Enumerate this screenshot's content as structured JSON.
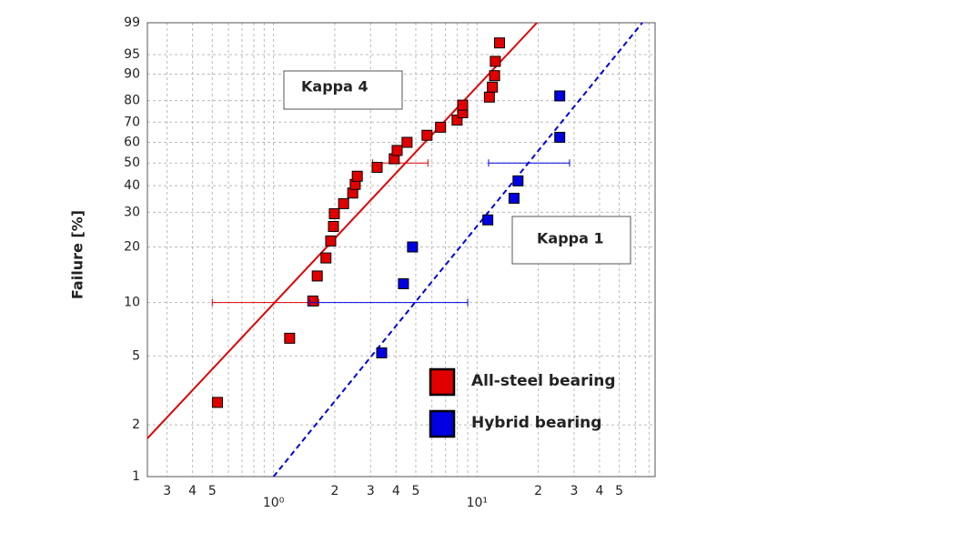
{
  "chart_data": {
    "type": "weibull",
    "y_label": "Failure [%]",
    "xscale": "log",
    "yscale": "weibull",
    "xlim": [
      0.24,
      75
    ],
    "ylim": [
      1,
      99
    ],
    "xticks": [
      {
        "value": 0.3,
        "label": "3"
      },
      {
        "value": 0.4,
        "label": "4"
      },
      {
        "value": 0.5,
        "label": "5"
      },
      {
        "value": 1,
        "label": "10⁰"
      },
      {
        "value": 2,
        "label": "2"
      },
      {
        "value": 3,
        "label": "3"
      },
      {
        "value": 4,
        "label": "4"
      },
      {
        "value": 5,
        "label": "5"
      },
      {
        "value": 10,
        "label": "10¹"
      },
      {
        "value": 20,
        "label": "2"
      },
      {
        "value": 30,
        "label": "3"
      },
      {
        "value": 40,
        "label": "4"
      },
      {
        "value": 50,
        "label": "5"
      }
    ],
    "xminor": [
      0.6,
      0.7,
      0.8,
      0.9,
      6,
      7,
      8,
      9,
      60,
      70
    ],
    "yticks": [
      1,
      2,
      5,
      10,
      20,
      30,
      40,
      50,
      60,
      70,
      80,
      90,
      95,
      99
    ],
    "grid": true,
    "legend": "lower right",
    "annotations": [
      "Kappa 4",
      "Kappa 1"
    ],
    "series": [
      {
        "name": "All-steel bearing",
        "color": "#e00000",
        "line_style": "solid",
        "x": [
          0.53,
          1.2,
          1.56,
          1.64,
          1.81,
          1.91,
          1.97,
          1.99,
          2.21,
          2.45,
          2.52,
          2.58,
          3.23,
          3.92,
          4.05,
          4.53,
          5.68,
          6.62,
          7.98,
          8.5,
          8.5,
          11.5,
          11.9,
          12.2,
          12.3,
          12.9
        ],
        "values": [
          2.7,
          6.3,
          10.2,
          14,
          17.5,
          21.5,
          25.5,
          29.5,
          33,
          37,
          40.5,
          44,
          48,
          52,
          56,
          60,
          63.5,
          67.5,
          71,
          74.5,
          78,
          81.5,
          85.5,
          89.5,
          93.5,
          97
        ],
        "fit": {
          "x": [
            0.24,
            19.7
          ],
          "y": [
            1.67,
            99
          ]
        },
        "intervals": [
          {
            "y": 10,
            "x": [
              0.5,
              1.67
            ]
          },
          {
            "y": 50,
            "x": [
              3.07,
              5.74
            ]
          }
        ]
      },
      {
        "name": "Hybrid bearing",
        "color": "#0000e0",
        "line_style": "dashed",
        "x": [
          3.4,
          4.35,
          4.82,
          11.3,
          15.2,
          15.9,
          25.5,
          25.5
        ],
        "values": [
          5.2,
          12.7,
          20,
          27.5,
          35,
          42,
          62.5,
          82
        ],
        "fit": {
          "x": [
            1,
            64.9
          ],
          "y": [
            1,
            99
          ]
        },
        "intervals": [
          {
            "y": 10,
            "x": [
              1.51,
              9.0
            ]
          },
          {
            "y": 50,
            "x": [
              11.4,
              28.5
            ]
          }
        ]
      }
    ]
  }
}
